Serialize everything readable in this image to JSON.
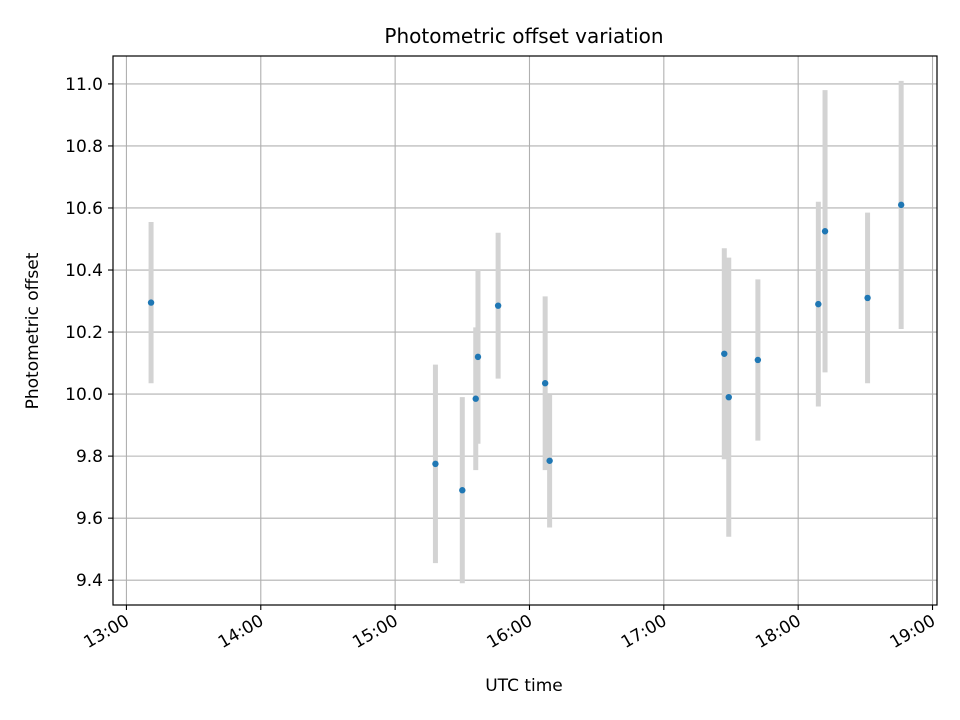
{
  "chart_data": {
    "type": "scatter",
    "title": "Photometric offset variation",
    "xlabel": "UTC time",
    "ylabel": "Photometric offset",
    "x_ticks": [
      "13:00",
      "14:00",
      "15:00",
      "16:00",
      "17:00",
      "18:00",
      "19:00"
    ],
    "y_ticks": [
      "9.4",
      "9.6",
      "9.8",
      "10.0",
      "10.2",
      "10.4",
      "10.6",
      "10.8",
      "11.0"
    ],
    "xlim": [
      "12:54",
      "19:02"
    ],
    "ylim": [
      9.32,
      11.09
    ],
    "grid": true,
    "series": [
      {
        "marker_color": "#1f77b4",
        "errorbar_color": "#d3d3d3",
        "points": [
          {
            "x": "13:11",
            "y": 10.295,
            "yerr": 0.26
          },
          {
            "x": "15:18",
            "y": 9.775,
            "yerr": 0.32
          },
          {
            "x": "15:30",
            "y": 9.69,
            "yerr": 0.3
          },
          {
            "x": "15:36",
            "y": 9.985,
            "yerr": 0.23
          },
          {
            "x": "15:37",
            "y": 10.12,
            "yerr": 0.28
          },
          {
            "x": "15:46",
            "y": 10.285,
            "yerr": 0.235
          },
          {
            "x": "16:07",
            "y": 10.035,
            "yerr": 0.28
          },
          {
            "x": "16:09",
            "y": 9.785,
            "yerr": 0.215
          },
          {
            "x": "17:27",
            "y": 10.13,
            "yerr": 0.34
          },
          {
            "x": "17:29",
            "y": 9.99,
            "yerr": 0.45
          },
          {
            "x": "17:42",
            "y": 10.11,
            "yerr": 0.26
          },
          {
            "x": "18:09",
            "y": 10.29,
            "yerr": 0.33
          },
          {
            "x": "18:12",
            "y": 10.525,
            "yerr": 0.455
          },
          {
            "x": "18:31",
            "y": 10.31,
            "yerr": 0.275
          },
          {
            "x": "18:46",
            "y": 10.61,
            "yerr": 0.4
          }
        ]
      }
    ]
  }
}
